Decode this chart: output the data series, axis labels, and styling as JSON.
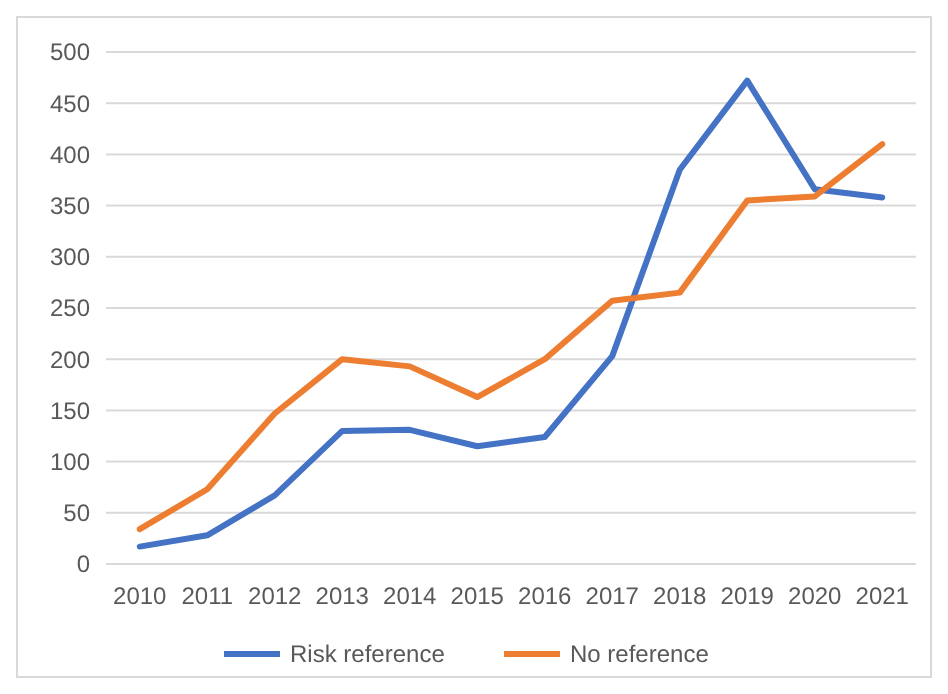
{
  "chart_data": {
    "type": "line",
    "categories": [
      "2010",
      "2011",
      "2012",
      "2013",
      "2014",
      "2015",
      "2016",
      "2017",
      "2018",
      "2019",
      "2020",
      "2021"
    ],
    "series": [
      {
        "name": "Risk reference",
        "color": "#4472c4",
        "values": [
          17,
          28,
          67,
          130,
          131,
          115,
          124,
          203,
          385,
          472,
          366,
          358
        ]
      },
      {
        "name": "No reference",
        "color": "#ed7d31",
        "values": [
          34,
          73,
          147,
          200,
          193,
          163,
          200,
          257,
          265,
          355,
          359,
          410
        ]
      }
    ],
    "ylim": [
      0,
      500
    ],
    "yticks": [
      0,
      50,
      100,
      150,
      200,
      250,
      300,
      350,
      400,
      450,
      500
    ],
    "grid": "y",
    "legend": "bottom",
    "marker": "none",
    "line_style": "solid"
  }
}
